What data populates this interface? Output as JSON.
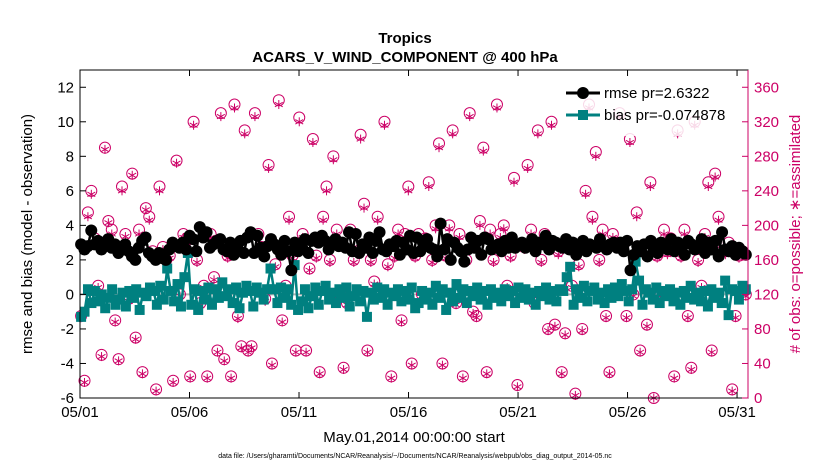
{
  "chart_data": {
    "type": "line",
    "title": "Tropics",
    "subtitle": "ACARS_V_WIND_COMPONENT @ 400 hPa",
    "xlabel": "May.01,2014 00:00:00 start",
    "ylabel": "rmse and bias (model - observation)",
    "y2label": "# of obs: o=possible; ∗=assimilated",
    "footnote": "data file: /Users/gharamti/Documents/NCAR/Reanalysis/~/Documents/NCAR/Reanalysis/webpub/obs_diag_output_2014-05.nc",
    "xlim": [
      1,
      31.5
    ],
    "ylim": [
      -6,
      13
    ],
    "y2lim": [
      0,
      380
    ],
    "x_ticks": [
      {
        "value": 1,
        "label": "05/01"
      },
      {
        "value": 6,
        "label": "05/06"
      },
      {
        "value": 11,
        "label": "05/11"
      },
      {
        "value": 16,
        "label": "05/16"
      },
      {
        "value": 21,
        "label": "05/21"
      },
      {
        "value": 26,
        "label": "05/26"
      },
      {
        "value": 31,
        "label": "05/31"
      }
    ],
    "y_ticks": [
      -6,
      -4,
      -2,
      0,
      2,
      4,
      6,
      8,
      10,
      12
    ],
    "y2_ticks": [
      0,
      40,
      80,
      120,
      160,
      200,
      240,
      280,
      320,
      360
    ],
    "grid": false,
    "legend_position": "top-right",
    "colors": {
      "rmse": "#000000",
      "bias": "#008080",
      "obs": "#cc0066",
      "zero_line": "#b0b0b0"
    },
    "series": [
      {
        "name": "rmse pr=2.6322",
        "values": [
          2.9,
          2.6,
          2.8,
          3.7,
          2.9,
          3.1,
          2.6,
          2.8,
          3.2,
          2.7,
          2.9,
          2.4,
          2.6,
          2.9,
          2.5,
          2.2,
          2.0,
          2.7,
          3.1,
          3.3,
          2.4,
          2.2,
          2.0,
          2.4,
          2.1,
          2.0,
          2.6,
          3.0,
          2.8,
          2.7,
          3.0,
          2.6,
          3.4,
          3.2,
          2.5,
          3.9,
          3.3,
          3.6,
          2.7,
          2.9,
          3.1,
          3.2,
          2.6,
          2.5,
          3.0,
          2.3,
          2.7,
          3.1,
          2.4,
          3.3,
          3.6,
          2.4,
          3.4,
          2.7,
          2.2,
          2.8,
          3.2,
          2.9,
          2.6,
          2.3,
          3.1,
          2.5,
          1.4,
          3.0,
          2.5,
          2.9,
          3.2,
          2.4,
          3.1,
          3.3,
          3.0,
          3.4,
          3.1,
          2.6,
          2.9,
          3.2,
          2.8,
          3.0,
          2.7,
          3.6,
          2.5,
          3.5,
          2.4,
          2.9,
          2.7,
          3.3,
          2.4,
          3.1,
          3.6,
          2.6,
          2.5,
          2.9,
          2.8,
          3.1,
          2.3,
          3.0,
          2.6,
          3.4,
          2.4,
          3.3,
          2.5,
          2.9,
          3.2,
          2.7,
          2.6,
          2.2,
          4.1,
          2.6,
          3.2,
          2.0,
          3.0,
          2.7,
          2.5,
          1.9,
          2.6,
          3.3,
          2.7,
          3.1,
          2.3,
          3.3,
          3.2,
          2.6,
          2.8,
          2.9,
          2.5,
          3.1,
          2.7,
          3.3,
          2.7,
          2.9,
          3.0,
          2.7,
          2.9,
          3.2,
          2.5,
          3.0,
          2.9,
          3.4,
          2.6,
          3.1,
          3.0,
          2.8,
          2.7,
          3.2,
          2.6,
          3.0,
          2.3,
          2.8,
          3.1,
          2.5,
          2.9,
          2.8,
          2.7,
          3.2,
          2.8,
          2.6,
          2.9,
          3.0,
          2.7,
          3.0,
          2.5,
          3.1,
          1.4,
          2.3,
          2.8,
          2.5,
          2.9,
          2.2,
          3.1,
          2.7,
          2.4,
          3.0,
          2.9,
          2.6,
          3.2,
          2.5,
          3.0,
          2.7,
          2.3,
          3.1,
          2.9,
          2.6,
          2.8,
          3.2,
          2.4,
          3.0,
          2.6,
          3.1,
          2.2,
          3.6,
          2.6,
          2.5,
          2.8,
          2.3,
          2.7,
          2.5,
          2.3
        ]
      },
      {
        "name": "bias pr=-0.074878",
        "values": [
          -1.3,
          -1.0,
          0.3,
          -0.5,
          0.2,
          -0.4,
          0.0,
          -0.8,
          -0.2,
          0.3,
          -0.6,
          -0.3,
          0.1,
          -0.7,
          0.2,
          -0.2,
          0.3,
          -0.9,
          0.1,
          -0.1,
          0.4,
          0.2,
          -0.6,
          0.5,
          -0.3,
          1.5,
          0.2,
          -0.4,
          0.6,
          -0.7,
          1.0,
          2.4,
          -0.6,
          0.3,
          -0.9,
          0.2,
          -0.3,
          0.4,
          -0.6,
          0.3,
          -0.2,
          0.7,
          -0.1,
          0.3,
          -0.5,
          0.4,
          -0.8,
          0.1,
          0.5,
          0.2,
          -0.7,
          0.4,
          0.1,
          -0.3,
          0.3,
          1.5,
          0.3,
          -0.5,
          0.4,
          -0.2,
          0.3,
          -0.6,
          1.7,
          -0.9,
          -0.4,
          0.3,
          -0.8,
          -0.1,
          0.4,
          -0.6,
          0.2,
          0.5,
          -0.3,
          0.1,
          -0.5,
          0.3,
          -0.2,
          0.4,
          -0.7,
          -0.1,
          0.3,
          -0.4,
          0.2,
          -1.3,
          0.1,
          -0.3,
          0.4,
          -0.2,
          0.3,
          -0.6,
          0.1,
          -0.1,
          0.3,
          -0.4,
          0.2,
          -0.3,
          0.4,
          -0.8,
          -0.5,
          0.2,
          -0.3,
          0.1,
          -0.6,
          0.5,
          -0.2,
          0.3,
          -0.9,
          0.1,
          -0.4,
          0.6,
          -0.2,
          0.3,
          -0.5,
          0.2,
          -0.1,
          0.4,
          -0.3,
          0.2,
          -0.6,
          0.3,
          -0.2,
          0.1,
          -0.4,
          0.3,
          -0.1,
          0.2,
          -0.5,
          0.4,
          -0.2,
          0.3,
          -0.3,
          0.1,
          -0.6,
          0.2,
          -0.1,
          0.4,
          -0.3,
          0.2,
          -0.4,
          0.3,
          0.2,
          1.0,
          1.6,
          -0.6,
          0.3,
          -0.2,
          0.5,
          -0.4,
          0.2,
          0.4,
          -0.3,
          0.1,
          -0.5,
          0.3,
          -0.2,
          0.4,
          -0.1,
          0.6,
          0.2,
          -0.4,
          0.3,
          1.9,
          0.8,
          -0.6,
          0.3,
          0.1,
          -0.3,
          0.4,
          -0.5,
          0.2,
          -0.1,
          0.3,
          -0.4,
          0.1,
          -0.6,
          0.2,
          -0.2,
          0.5,
          -0.3,
          0.1,
          -0.4,
          0.2,
          -0.7,
          0.3,
          -0.2,
          0.1,
          -0.5,
          0.8,
          -1.2,
          0.3,
          0.2,
          -0.3,
          0.5,
          0.3
        ]
      },
      {
        "name": "# obs possible",
        "axis": "right",
        "values": [
          95,
          20,
          215,
          240,
          185,
          130,
          50,
          290,
          205,
          195,
          90,
          45,
          245,
          190,
          115,
          260,
          70,
          195,
          30,
          220,
          210,
          170,
          10,
          245,
          175,
          160,
          165,
          20,
          275,
          120,
          190,
          185,
          25,
          320,
          160,
          110,
          130,
          25,
          190,
          140,
          55,
          330,
          45,
          165,
          25,
          340,
          95,
          60,
          310,
          55,
          60,
          330,
          190,
          175,
          115,
          270,
          40,
          155,
          345,
          90,
          130,
          210,
          165,
          55,
          325,
          190,
          55,
          150,
          300,
          165,
          30,
          210,
          245,
          160,
          280,
          195,
          120,
          35,
          110,
          195,
          160,
          170,
          305,
          225,
          55,
          160,
          135,
          210,
          120,
          320,
          155,
          25,
          165,
          195,
          90,
          190,
          245,
          40,
          165,
          190,
          120,
          185,
          250,
          160,
          200,
          295,
          40,
          165,
          200,
          310,
          110,
          190,
          25,
          160,
          330,
          100,
          95,
          205,
          290,
          30,
          195,
          160,
          340,
          190,
          200,
          130,
          165,
          255,
          15,
          120,
          175,
          270,
          195,
          110,
          310,
          160,
          190,
          80,
          320,
          85,
          170,
          30,
          75,
          175,
          130,
          5,
          155,
          80,
          240,
          340,
          210,
          285,
          160,
          195,
          95,
          30,
          190,
          180,
          330,
          175,
          95,
          300,
          120,
          215,
          55,
          170,
          85,
          250,
          0,
          165,
          120,
          195,
          170,
          185,
          25,
          310,
          165,
          195,
          95,
          35,
          320,
          160,
          130,
          190,
          250,
          55,
          260,
          210,
          170,
          170,
          180,
          10,
          95,
          165,
          170,
          120
        ]
      },
      {
        "name": "# obs assimilated",
        "axis": "right",
        "values": [
          93,
          18,
          210,
          236,
          180,
          128,
          48,
          288,
          203,
          190,
          88,
          43,
          240,
          187,
          112,
          258,
          68,
          190,
          28,
          218,
          206,
          166,
          8,
          240,
          172,
          157,
          162,
          18,
          272,
          118,
          186,
          180,
          23,
          316,
          157,
          107,
          128,
          23,
          186,
          137,
          53,
          326,
          43,
          162,
          23,
          336,
          92,
          58,
          306,
          53,
          58,
          326,
          186,
          172,
          112,
          266,
          38,
          152,
          340,
          88,
          128,
          206,
          162,
          53,
          320,
          186,
          53,
          148,
          296,
          162,
          28,
          206,
          240,
          157,
          276,
          190,
          118,
          33,
          108,
          190,
          157,
          166,
          300,
          220,
          53,
          157,
          132,
          206,
          118,
          316,
          152,
          23,
          162,
          190,
          88,
          186,
          240,
          38,
          162,
          186,
          118,
          180,
          245,
          157,
          196,
          290,
          38,
          162,
          196,
          306,
          108,
          186,
          23,
          157,
          326,
          98,
          93,
          200,
          286,
          28,
          190,
          157,
          336,
          186,
          196,
          128,
          162,
          250,
          13,
          118,
          172,
          266,
          190,
          108,
          306,
          157,
          186,
          78,
          316,
          83,
          166,
          28,
          73,
          172,
          128,
          3,
          152,
          78,
          236,
          336,
          206,
          280,
          157,
          190,
          93,
          28,
          186,
          176,
          326,
          172,
          93,
          296,
          118,
          210,
          53,
          166,
          83,
          245,
          0,
          162,
          118,
          190,
          166,
          180,
          23,
          306,
          162,
          190,
          93,
          33,
          316,
          157,
          128,
          186,
          245,
          53,
          256,
          206,
          166,
          166,
          176,
          8,
          93,
          162,
          166,
          118
        ]
      }
    ]
  }
}
